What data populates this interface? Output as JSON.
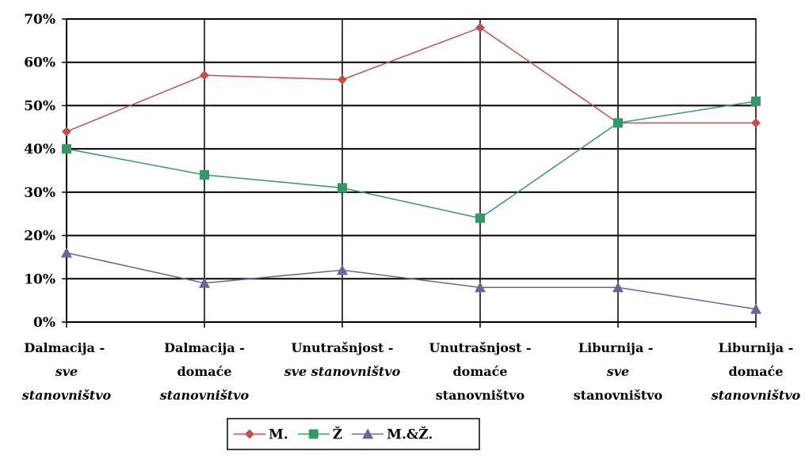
{
  "chart_data": {
    "type": "line",
    "categories": [
      [
        "Dalmacija - ",
        "sve",
        "stanovništvo"
      ],
      [
        "Dalmacija -",
        "domaće",
        "stanovništvo"
      ],
      [
        "Unutrašnjost -",
        "sve stanovništvo"
      ],
      [
        "Unutrašnjost -",
        "domaće",
        "stanovništvo"
      ],
      [
        "Liburnija - ",
        "sve",
        "stanovništvo"
      ],
      [
        "Liburnija -",
        "domaće",
        "stanovništvo"
      ]
    ],
    "category_italic": [
      [
        false,
        true,
        true
      ],
      [
        false,
        false,
        true
      ],
      [
        false,
        true
      ],
      [
        false,
        false,
        false
      ],
      [
        false,
        true,
        false
      ],
      [
        false,
        false,
        true
      ]
    ],
    "series": [
      {
        "name": "M.",
        "values": [
          44,
          57,
          56,
          68,
          46,
          46
        ],
        "color": "#C0504D",
        "marker": "diamond"
      },
      {
        "name": "Ž",
        "values": [
          40,
          34,
          31,
          24,
          46,
          51
        ],
        "color": "#339966",
        "marker": "square"
      },
      {
        "name": "M.&Ž.",
        "values": [
          16,
          9,
          12,
          8,
          8,
          3
        ],
        "color": "#666699",
        "marker": "triangle"
      }
    ],
    "ylim": [
      0,
      70
    ],
    "yticks": [
      0,
      10,
      20,
      30,
      40,
      50,
      60,
      70
    ],
    "ytick_labels": [
      "0%",
      "10%",
      "20%",
      "30%",
      "40%",
      "50%",
      "60%",
      "70%"
    ],
    "grid": true,
    "legend_position": "bottom-center"
  }
}
